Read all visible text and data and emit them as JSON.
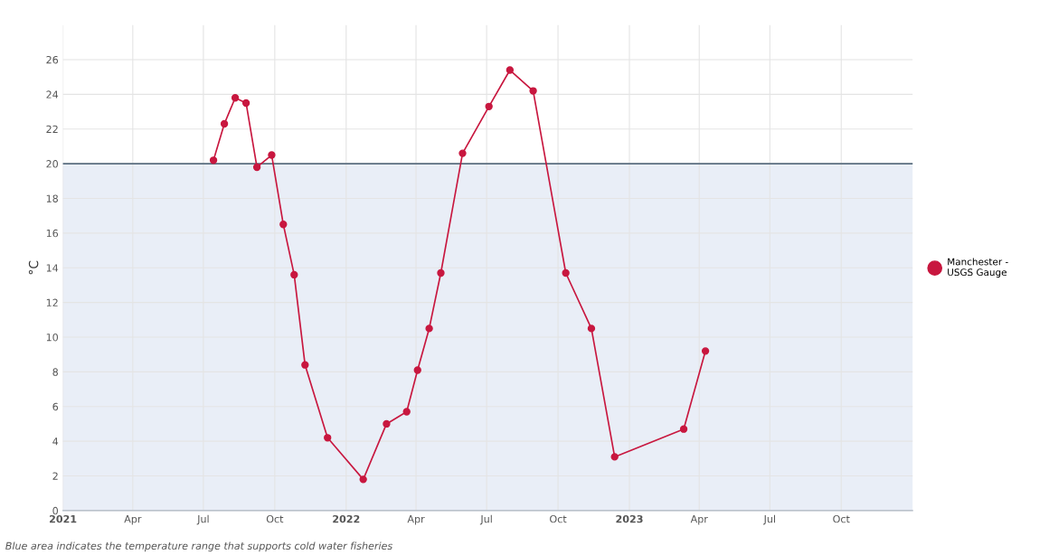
{
  "chart_data": {
    "type": "line",
    "ylabel": "°C",
    "x": [
      "2021-07-14",
      "2021-07-28",
      "2021-08-11",
      "2021-08-25",
      "2021-09-08",
      "2021-09-27",
      "2021-10-12",
      "2021-10-26",
      "2021-11-09",
      "2021-12-08",
      "2022-01-23",
      "2022-02-22",
      "2022-03-20",
      "2022-04-03",
      "2022-04-18",
      "2022-05-03",
      "2022-05-31",
      "2022-07-04",
      "2022-07-31",
      "2022-08-30",
      "2022-10-11",
      "2022-11-13",
      "2022-12-13",
      "2023-03-12",
      "2023-04-09"
    ],
    "series": [
      {
        "name": "Manchester - USGS Gauge",
        "color": "#c8173f",
        "values": [
          20.2,
          22.3,
          23.8,
          23.5,
          19.8,
          20.5,
          16.5,
          13.6,
          8.4,
          4.2,
          1.8,
          5.0,
          5.7,
          8.1,
          10.5,
          13.7,
          20.6,
          23.3,
          25.4,
          24.2,
          13.7,
          10.5,
          3.1,
          4.7,
          9.2
        ]
      }
    ],
    "xlim": [
      "2021-01-01",
      "2024-01-01"
    ],
    "xticks": [
      {
        "value": "2021-01-01",
        "label": "2021"
      },
      {
        "value": "2021-04-01",
        "label": "Apr"
      },
      {
        "value": "2021-07-01",
        "label": "Jul"
      },
      {
        "value": "2021-10-01",
        "label": "Oct"
      },
      {
        "value": "2022-01-01",
        "label": "2022"
      },
      {
        "value": "2022-04-01",
        "label": "Apr"
      },
      {
        "value": "2022-07-01",
        "label": "Jul"
      },
      {
        "value": "2022-10-01",
        "label": "Oct"
      },
      {
        "value": "2023-01-01",
        "label": "2023"
      },
      {
        "value": "2023-04-01",
        "label": "Apr"
      },
      {
        "value": "2023-07-01",
        "label": "Jul"
      },
      {
        "value": "2023-10-01",
        "label": "Oct"
      }
    ],
    "ylim": [
      0,
      28
    ],
    "yticks": [
      0,
      2,
      4,
      6,
      8,
      10,
      12,
      14,
      16,
      18,
      20,
      22,
      24,
      26
    ],
    "bands": [
      {
        "axis": "y",
        "from": 0,
        "to": 20,
        "color": "#e9eef7"
      }
    ],
    "ref_lines": [
      {
        "axis": "y",
        "value": 20,
        "color": "#5b6f80"
      }
    ],
    "annotations": [
      "Blue area indicates the temperature range that supports cold water fisheries"
    ],
    "grid": true,
    "legend": "right",
    "marker": "circle",
    "line_style": "solid"
  }
}
